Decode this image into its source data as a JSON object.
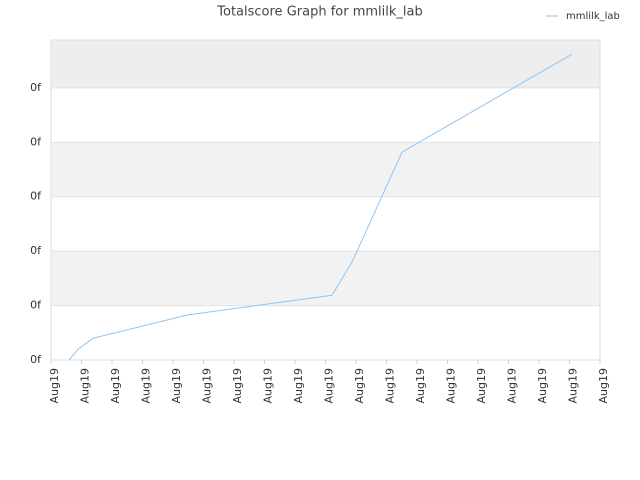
{
  "chart_data": {
    "type": "line",
    "title": "Totalscore Graph for mmlilk_lab",
    "x": [
      0.59,
      0.89,
      1.38,
      4.49,
      9.21,
      9.87,
      11.51,
      17.08
    ],
    "series": [
      {
        "name": "mmlilk_lab",
        "color": "#90c4f0",
        "values": [
          0,
          0.2,
          0.4,
          0.83,
          1.19,
          1.8,
          3.82,
          5.62
        ]
      }
    ],
    "xlim": [
      0,
      18
    ],
    "xticks": [
      {
        "value": 0,
        "label": "Aug19"
      },
      {
        "value": 1,
        "label": "Aug19"
      },
      {
        "value": 2,
        "label": "Aug19"
      },
      {
        "value": 3,
        "label": "Aug19"
      },
      {
        "value": 4,
        "label": "Aug19"
      },
      {
        "value": 5,
        "label": "Aug19"
      },
      {
        "value": 6,
        "label": "Aug19"
      },
      {
        "value": 7,
        "label": "Aug19"
      },
      {
        "value": 8,
        "label": "Aug19"
      },
      {
        "value": 9,
        "label": "Aug19"
      },
      {
        "value": 10,
        "label": "Aug19"
      },
      {
        "value": 11,
        "label": "Aug19"
      },
      {
        "value": 12,
        "label": "Aug19"
      },
      {
        "value": 13,
        "label": "Aug19"
      },
      {
        "value": 14,
        "label": "Aug19"
      },
      {
        "value": 15,
        "label": "Aug19"
      },
      {
        "value": 16,
        "label": "Aug19"
      },
      {
        "value": 17,
        "label": "Aug19"
      },
      {
        "value": 18,
        "label": "Aug19"
      }
    ],
    "ylim": [
      0,
      5.88
    ],
    "yticks": [
      {
        "value": 0,
        "label": "0f"
      },
      {
        "value": 1,
        "label": "0f"
      },
      {
        "value": 2,
        "label": "0f"
      },
      {
        "value": 3,
        "label": "0f"
      },
      {
        "value": 4,
        "label": "0f"
      },
      {
        "value": 5,
        "label": "0f"
      }
    ],
    "grid": true,
    "legend": "upper right"
  }
}
